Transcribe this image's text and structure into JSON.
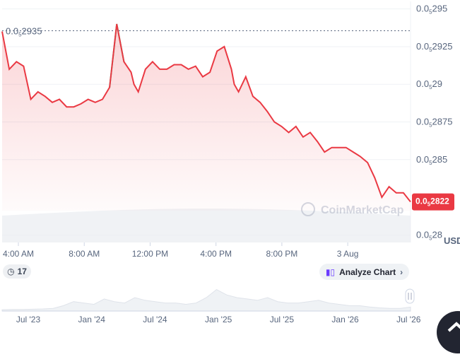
{
  "chart_data": {
    "type": "line",
    "unit": "USD",
    "y_ticks": [
      {
        "label_main": "0.0",
        "label_sub": "5",
        "label_rest": "295",
        "value": 0.0295
      },
      {
        "label_main": "0.0",
        "label_sub": "5",
        "label_rest": "2925",
        "value": 0.02925
      },
      {
        "label_main": "0.0",
        "label_sub": "5",
        "label_rest": "29",
        "value": 0.029
      },
      {
        "label_main": "0.0",
        "label_sub": "5",
        "label_rest": "2875",
        "value": 0.02875
      },
      {
        "label_main": "0.0",
        "label_sub": "5",
        "label_rest": "285",
        "value": 0.0285
      },
      {
        "label_main": "0.0",
        "label_sub": "5",
        "label_rest": "28",
        "value": 0.028
      }
    ],
    "ylim": [
      0.02795,
      0.02955
    ],
    "x_ticks": [
      "4:00 AM",
      "8:00 AM",
      "12:00 PM",
      "4:00 PM",
      "8:00 PM",
      "3 Aug"
    ],
    "reference_price": {
      "label_main": "0.0",
      "label_sub": "5",
      "label_rest": "2935",
      "value": 0.029355
    },
    "current_price": {
      "label_main": "0.0",
      "label_sub": "5",
      "label_rest": "2822",
      "value": 0.028224
    },
    "series": [
      {
        "x": [
          0.0,
          0.5,
          1.0,
          1.5,
          2.0,
          2.5,
          3.0,
          3.5,
          4.0,
          4.5,
          5.0,
          5.5,
          6.0,
          6.5,
          7.0,
          7.5,
          8.0,
          8.5,
          9.0,
          9.2,
          9.5,
          10.0,
          10.5,
          11.0,
          11.5,
          12.0,
          12.5,
          13.0,
          13.5,
          14.0,
          14.5,
          15.0,
          15.5,
          16.0,
          16.2,
          16.5,
          17.0,
          17.5,
          18.0,
          18.5,
          19.0,
          19.5,
          20.0,
          20.5,
          21.0,
          21.5,
          22.0,
          22.5,
          23.0,
          23.5,
          24.0,
          24.5,
          25.0,
          25.5,
          26.0,
          26.5,
          27.0,
          27.5,
          28.0,
          28.5
        ],
        "y": [
          0.02935,
          0.0291,
          0.02915,
          0.02912,
          0.0289,
          0.02895,
          0.02892,
          0.02888,
          0.0289,
          0.02885,
          0.02885,
          0.02887,
          0.0289,
          0.02888,
          0.0289,
          0.02898,
          0.0294,
          0.02915,
          0.02908,
          0.029,
          0.02895,
          0.0291,
          0.02915,
          0.0291,
          0.0291,
          0.02913,
          0.02913,
          0.0291,
          0.02912,
          0.02905,
          0.02908,
          0.02922,
          0.02925,
          0.0291,
          0.029,
          0.02895,
          0.02905,
          0.02892,
          0.02888,
          0.02882,
          0.02875,
          0.02872,
          0.02868,
          0.02872,
          0.02865,
          0.02868,
          0.02862,
          0.02855,
          0.02858,
          0.02858,
          0.02858,
          0.02855,
          0.02852,
          0.02848,
          0.02838,
          0.02825,
          0.02832,
          0.02828,
          0.02828,
          0.02822
        ],
        "color": "#ea3943",
        "up_color": "#16c784"
      }
    ],
    "volume_note": "",
    "navigator": {
      "labels": [
        "Jul '23",
        "Jan '24",
        "Jul '24",
        "Jan '25",
        "Jul '25",
        "Jan '26",
        "Jul '26"
      ],
      "values": [
        0.05,
        0.06,
        0.06,
        0.07,
        0.08,
        0.1,
        0.2,
        0.35,
        0.3,
        0.25,
        0.45,
        0.35,
        0.3,
        0.5,
        0.4,
        0.35,
        0.3,
        0.3,
        0.25,
        0.3,
        0.5,
        0.8,
        0.6,
        0.5,
        0.45,
        0.4,
        0.5,
        0.35,
        0.3,
        0.3,
        0.35,
        0.4,
        0.3,
        0.25,
        0.2,
        0.2,
        0.15,
        0.12,
        0.1,
        0.1,
        0.15
      ]
    }
  },
  "watermark": "CoinMarketCap",
  "events_button": {
    "label": "17",
    "icon": "clock-history-icon"
  },
  "analyze_button": {
    "label": "Analyze Chart",
    "icon": "candlestick-icon"
  },
  "colors": {
    "line_down": "#ea3943",
    "line_up": "#16c784",
    "price_badge": "#ea3943",
    "text": "#58667e"
  }
}
